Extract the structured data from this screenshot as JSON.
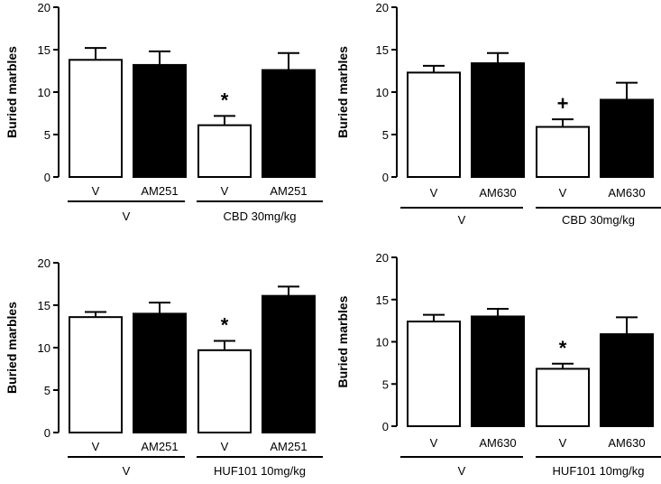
{
  "chart_data": [
    {
      "type": "bar",
      "ylabel": "Buried marbles",
      "ylim": [
        0,
        20
      ],
      "yticks": [
        0,
        5,
        10,
        15,
        20
      ],
      "categories": [
        "V",
        "AM251",
        "V",
        "AM251"
      ],
      "values": [
        13.8,
        13.2,
        6.1,
        12.6
      ],
      "errors": [
        1.4,
        1.6,
        1.1,
        2.0
      ],
      "fills": [
        "#ffffff",
        "#000000",
        "#ffffff",
        "#000000"
      ],
      "groups": [
        {
          "label": "V",
          "span": [
            0,
            1
          ]
        },
        {
          "label": "CBD 30mg/kg",
          "span": [
            2,
            3
          ]
        }
      ],
      "annotations": [
        {
          "bar": 2,
          "text": "*"
        }
      ]
    },
    {
      "type": "bar",
      "ylabel": "Buried marbles",
      "ylim": [
        0,
        20
      ],
      "yticks": [
        0,
        5,
        10,
        15,
        20
      ],
      "categories": [
        "V",
        "AM630",
        "V",
        "AM630"
      ],
      "values": [
        12.3,
        13.4,
        5.9,
        9.1
      ],
      "errors": [
        0.8,
        1.2,
        0.9,
        2.0
      ],
      "fills": [
        "#ffffff",
        "#000000",
        "#ffffff",
        "#000000"
      ],
      "groups": [
        {
          "label": "V",
          "span": [
            0,
            1
          ]
        },
        {
          "label": "CBD 30mg/kg",
          "span": [
            2,
            3
          ]
        }
      ],
      "annotations": [
        {
          "bar": 2,
          "text": "+"
        }
      ]
    },
    {
      "type": "bar",
      "ylabel": "Buried marbles",
      "ylim": [
        0,
        20
      ],
      "yticks": [
        0,
        5,
        10,
        15,
        20
      ],
      "categories": [
        "V",
        "AM251",
        "V",
        "AM251"
      ],
      "values": [
        13.6,
        14.0,
        9.7,
        16.1
      ],
      "errors": [
        0.6,
        1.3,
        1.1,
        1.1
      ],
      "fills": [
        "#ffffff",
        "#000000",
        "#ffffff",
        "#000000"
      ],
      "groups": [
        {
          "label": "V",
          "span": [
            0,
            1
          ]
        },
        {
          "label": "HUF101 10mg/kg",
          "span": [
            2,
            3
          ]
        }
      ],
      "annotations": [
        {
          "bar": 2,
          "text": "*"
        }
      ]
    },
    {
      "type": "bar",
      "ylabel": "Buried marbles",
      "ylim": [
        0,
        20
      ],
      "yticks": [
        0,
        5,
        10,
        15,
        20
      ],
      "categories": [
        "V",
        "AM630",
        "V",
        "AM630"
      ],
      "values": [
        12.4,
        13.0,
        6.8,
        10.9
      ],
      "errors": [
        0.8,
        0.9,
        0.6,
        2.0
      ],
      "fills": [
        "#ffffff",
        "#000000",
        "#ffffff",
        "#000000"
      ],
      "groups": [
        {
          "label": "V",
          "span": [
            0,
            1
          ]
        },
        {
          "label": "HUF101 10mg/kg",
          "span": [
            2,
            3
          ]
        }
      ],
      "annotations": [
        {
          "bar": 2,
          "text": "*"
        }
      ]
    }
  ]
}
